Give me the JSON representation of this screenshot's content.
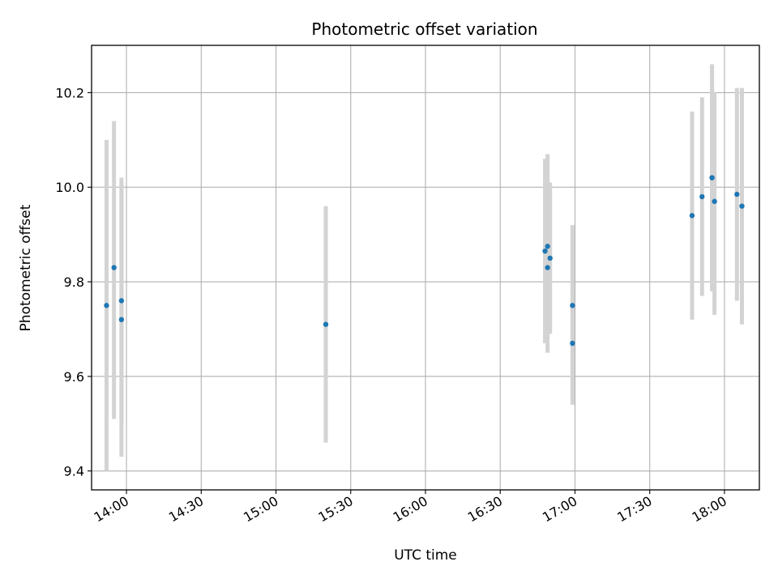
{
  "chart_data": {
    "type": "scatter",
    "title": "Photometric offset variation",
    "xlabel": "UTC time",
    "ylabel": "Photometric offset",
    "x_ticks": [
      "14:00",
      "14:30",
      "15:00",
      "15:30",
      "16:00",
      "16:30",
      "17:00",
      "17:30",
      "18:00"
    ],
    "y_ticks": [
      "9.4",
      "9.6",
      "9.8",
      "10.0",
      "10.2"
    ],
    "xlim": [
      "13:46",
      "18:14"
    ],
    "ylim": [
      9.36,
      10.3
    ],
    "grid": true,
    "colors": {
      "marker": "#1f77b4",
      "errorbar": "#d3d3d3",
      "grid": "#b0b0b0"
    },
    "points": [
      {
        "time": "13:52",
        "y": 9.75,
        "low": 9.4,
        "high": 10.1
      },
      {
        "time": "13:55",
        "y": 9.83,
        "low": 9.51,
        "high": 10.14
      },
      {
        "time": "13:58",
        "y": 9.72,
        "low": 9.43,
        "high": 10.02
      },
      {
        "time": "13:58",
        "y": 9.76,
        "low": 9.5,
        "high": 10.01
      },
      {
        "time": "15:20",
        "y": 9.71,
        "low": 9.46,
        "high": 9.96
      },
      {
        "time": "16:48",
        "y": 9.865,
        "low": 9.67,
        "high": 10.06
      },
      {
        "time": "16:49",
        "y": 9.83,
        "low": 9.65,
        "high": 10.02
      },
      {
        "time": "16:49",
        "y": 9.875,
        "low": 9.68,
        "high": 10.07
      },
      {
        "time": "16:50",
        "y": 9.85,
        "low": 9.69,
        "high": 10.01
      },
      {
        "time": "16:59",
        "y": 9.75,
        "low": 9.58,
        "high": 9.92
      },
      {
        "time": "16:59",
        "y": 9.67,
        "low": 9.54,
        "high": 9.8
      },
      {
        "time": "17:47",
        "y": 9.94,
        "low": 9.72,
        "high": 10.16
      },
      {
        "time": "17:51",
        "y": 9.98,
        "low": 9.77,
        "high": 10.19
      },
      {
        "time": "17:55",
        "y": 10.02,
        "low": 9.78,
        "high": 10.26
      },
      {
        "time": "17:55",
        "y": 10.02,
        "low": 9.79,
        "high": 10.25
      },
      {
        "time": "17:56",
        "y": 9.97,
        "low": 9.73,
        "high": 10.2
      },
      {
        "time": "18:05",
        "y": 9.985,
        "low": 9.76,
        "high": 10.21
      },
      {
        "time": "18:07",
        "y": 9.96,
        "low": 9.71,
        "high": 10.21
      }
    ]
  }
}
